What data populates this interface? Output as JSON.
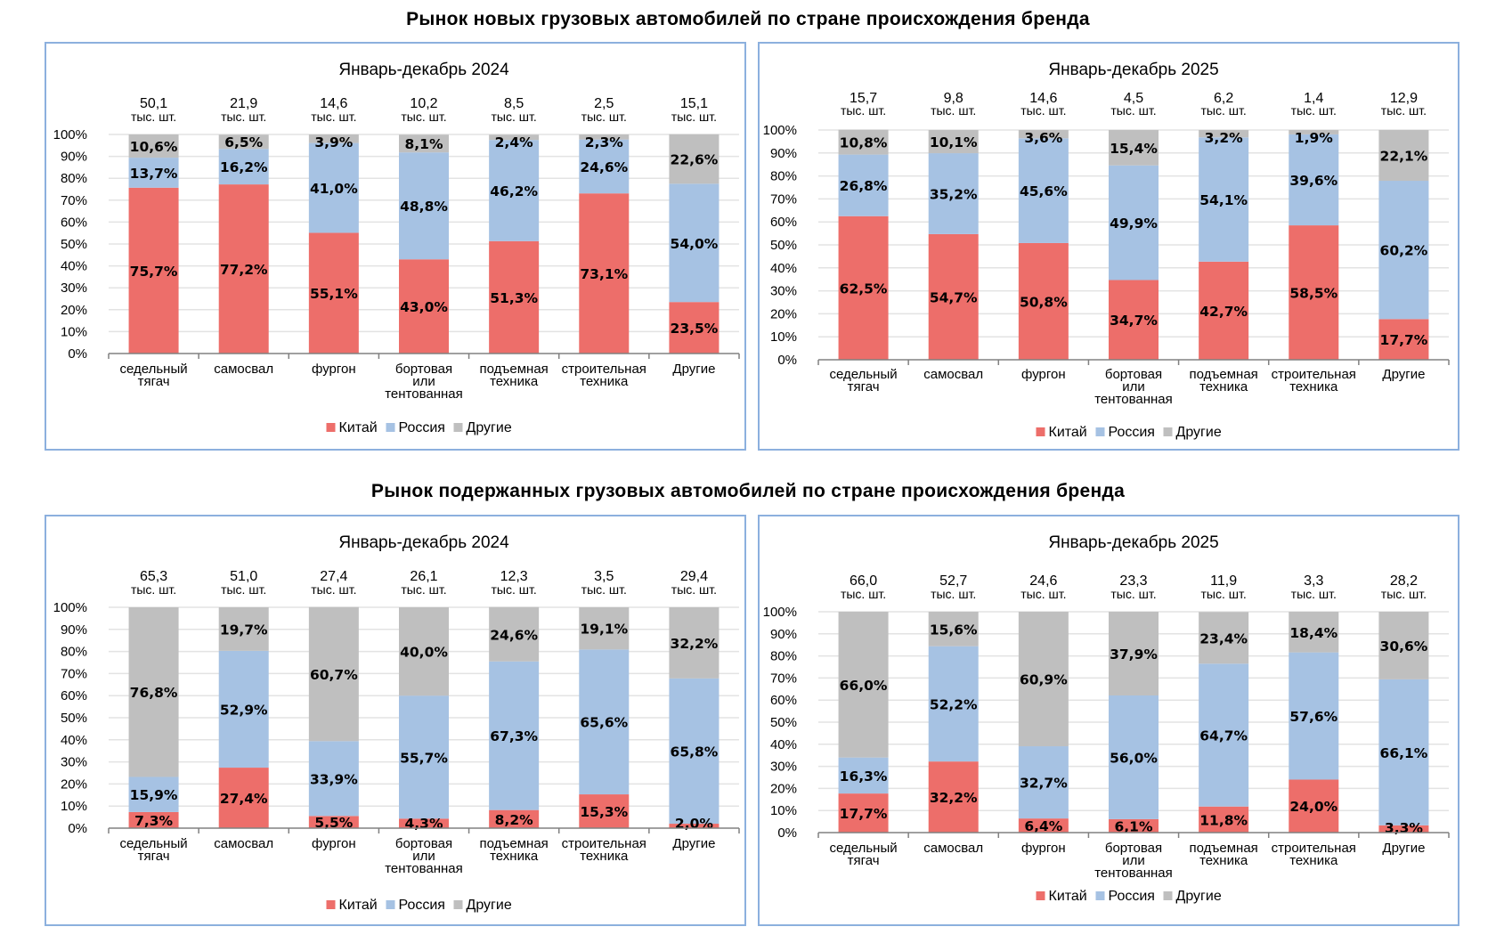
{
  "titles": {
    "new_market": "Рынок новых грузовых автомобилей по стране происхождения бренда",
    "used_market": "Рынок подержанных грузовых автомобилей по стране происхождения бренда"
  },
  "colors": {
    "china": "#ed6e6a",
    "russia": "#a6c2e3",
    "other": "#bfbfbf",
    "border": "#8cb0de",
    "grid": "#e3e3e3",
    "axis": "#808080"
  },
  "chart_data": [
    {
      "type": "bar",
      "stacked": true,
      "section": "new",
      "title": "Январь-декабрь 2024",
      "categories": [
        [
          "седельный",
          "тягач"
        ],
        [
          "самосвал"
        ],
        [
          "фургон"
        ],
        [
          "бортовая",
          "или",
          "тентованная"
        ],
        [
          "подъемная",
          "техника"
        ],
        [
          "строительная",
          "техника"
        ],
        [
          "Другие"
        ]
      ],
      "totals": [
        "50,1",
        "21,9",
        "14,6",
        "10,2",
        "8,5",
        "2,5",
        "15,1"
      ],
      "total_unit": "тыс. шт.",
      "series": [
        {
          "name": "Китай",
          "values": [
            75.7,
            77.2,
            55.1,
            43.0,
            51.3,
            73.1,
            23.5
          ],
          "labels": [
            "75,7%",
            "77,2%",
            "55,1%",
            "43,0%",
            "51,3%",
            "73,1%",
            "23,5%"
          ]
        },
        {
          "name": "Россия",
          "values": [
            13.7,
            16.2,
            41.0,
            48.8,
            46.2,
            24.6,
            54.0
          ],
          "labels": [
            "13,7%",
            "16,2%",
            "41,0%",
            "48,8%",
            "46,2%",
            "24,6%",
            "54,0%"
          ]
        },
        {
          "name": "Другие",
          "values": [
            10.6,
            6.5,
            3.9,
            8.1,
            2.4,
            2.3,
            22.6
          ],
          "labels": [
            "10,6%",
            "6,5%",
            "3,9%",
            "8,1%",
            "2,4%",
            "2,3%",
            "22,6%"
          ]
        }
      ],
      "yticks": [
        "0%",
        "10%",
        "20%",
        "30%",
        "40%",
        "50%",
        "60%",
        "70%",
        "80%",
        "90%",
        "100%"
      ],
      "ylim": [
        0,
        100
      ],
      "grid": true,
      "legend": "bottom"
    },
    {
      "type": "bar",
      "stacked": true,
      "section": "new",
      "title": "Январь-декабрь 2025",
      "categories": [
        [
          "седельный",
          "тягач"
        ],
        [
          "самосвал"
        ],
        [
          "фургон"
        ],
        [
          "бортовая",
          "или",
          "тентованная"
        ],
        [
          "подъемная",
          "техника"
        ],
        [
          "строительная",
          "техника"
        ],
        [
          "Другие"
        ]
      ],
      "totals": [
        "15,7",
        "9,8",
        "14,6",
        "4,5",
        "6,2",
        "1,4",
        "12,9"
      ],
      "total_unit": "тыс. шт.",
      "series": [
        {
          "name": "Китай",
          "values": [
            62.5,
            54.7,
            50.8,
            34.7,
            42.7,
            58.5,
            17.7
          ],
          "labels": [
            "62,5%",
            "54,7%",
            "50,8%",
            "34,7%",
            "42,7%",
            "58,5%",
            "17,7%"
          ]
        },
        {
          "name": "Россия",
          "values": [
            26.8,
            35.2,
            45.6,
            49.9,
            54.1,
            39.6,
            60.2
          ],
          "labels": [
            "26,8%",
            "35,2%",
            "45,6%",
            "49,9%",
            "54,1%",
            "39,6%",
            "60,2%"
          ]
        },
        {
          "name": "Другие",
          "values": [
            10.8,
            10.1,
            3.6,
            15.4,
            3.2,
            1.9,
            22.1
          ],
          "labels": [
            "10,8%",
            "10,1%",
            "3,6%",
            "15,4%",
            "3,2%",
            "1,9%",
            "22,1%"
          ]
        }
      ],
      "yticks": [
        "0%",
        "10%",
        "20%",
        "30%",
        "40%",
        "50%",
        "60%",
        "70%",
        "80%",
        "90%",
        "100%"
      ],
      "ylim": [
        0,
        100
      ],
      "grid": true,
      "legend": "bottom"
    },
    {
      "type": "bar",
      "stacked": true,
      "section": "used",
      "title": "Январь-декабрь 2024",
      "categories": [
        [
          "седельный",
          "тягач"
        ],
        [
          "самосвал"
        ],
        [
          "фургон"
        ],
        [
          "бортовая",
          "или",
          "тентованная"
        ],
        [
          "подъемная",
          "техника"
        ],
        [
          "строительная",
          "техника"
        ],
        [
          "Другие"
        ]
      ],
      "totals": [
        "65,3",
        "51,0",
        "27,4",
        "26,1",
        "12,3",
        "3,5",
        "29,4"
      ],
      "total_unit": "тыс. шт.",
      "series": [
        {
          "name": "Китай",
          "values": [
            7.3,
            27.4,
            5.5,
            4.3,
            8.2,
            15.3,
            2.0
          ],
          "labels": [
            "7,3%",
            "27,4%",
            "5,5%",
            "4,3%",
            "8,2%",
            "15,3%",
            "2,0%"
          ]
        },
        {
          "name": "Россия",
          "values": [
            15.9,
            52.9,
            33.9,
            55.7,
            67.3,
            65.6,
            65.8
          ],
          "labels": [
            "15,9%",
            "52,9%",
            "33,9%",
            "55,7%",
            "67,3%",
            "65,6%",
            "65,8%"
          ]
        },
        {
          "name": "Другие",
          "values": [
            76.8,
            19.7,
            60.7,
            40.0,
            24.6,
            19.1,
            32.2
          ],
          "labels": [
            "76,8%",
            "19,7%",
            "60,7%",
            "40,0%",
            "24,6%",
            "19,1%",
            "32,2%"
          ]
        }
      ],
      "yticks": [
        "0%",
        "10%",
        "20%",
        "30%",
        "40%",
        "50%",
        "60%",
        "70%",
        "80%",
        "90%",
        "100%"
      ],
      "ylim": [
        0,
        100
      ],
      "grid": true,
      "legend": "bottom"
    },
    {
      "type": "bar",
      "stacked": true,
      "section": "used",
      "title": "Январь-декабрь 2025",
      "categories": [
        [
          "седельный",
          "тягач"
        ],
        [
          "самосвал"
        ],
        [
          "фургон"
        ],
        [
          "бортовая",
          "или",
          "тентованная"
        ],
        [
          "подъемная",
          "техника"
        ],
        [
          "строительная",
          "техника"
        ],
        [
          "Другие"
        ]
      ],
      "totals": [
        "66,0",
        "52,7",
        "24,6",
        "23,3",
        "11,9",
        "3,3",
        "28,2"
      ],
      "total_unit": "тыс. шт.",
      "series": [
        {
          "name": "Китай",
          "values": [
            17.7,
            32.2,
            6.4,
            6.1,
            11.8,
            24.0,
            3.3
          ],
          "labels": [
            "17,7%",
            "32,2%",
            "6,4%",
            "6,1%",
            "11,8%",
            "24,0%",
            "3,3%"
          ]
        },
        {
          "name": "Россия",
          "values": [
            16.3,
            52.2,
            32.7,
            56.0,
            64.7,
            57.6,
            66.1
          ],
          "labels": [
            "16,3%",
            "52,2%",
            "32,7%",
            "56,0%",
            "64,7%",
            "57,6%",
            "66,1%"
          ]
        },
        {
          "name": "Другие",
          "values": [
            66.0,
            15.6,
            60.9,
            37.9,
            23.4,
            18.4,
            30.6
          ],
          "labels": [
            "66,0%",
            "15,6%",
            "60,9%",
            "37,9%",
            "23,4%",
            "18,4%",
            "30,6%"
          ]
        }
      ],
      "yticks": [
        "0%",
        "10%",
        "20%",
        "30%",
        "40%",
        "50%",
        "60%",
        "70%",
        "80%",
        "90%",
        "100%"
      ],
      "ylim": [
        0,
        100
      ],
      "grid": true,
      "legend": "bottom"
    }
  ]
}
